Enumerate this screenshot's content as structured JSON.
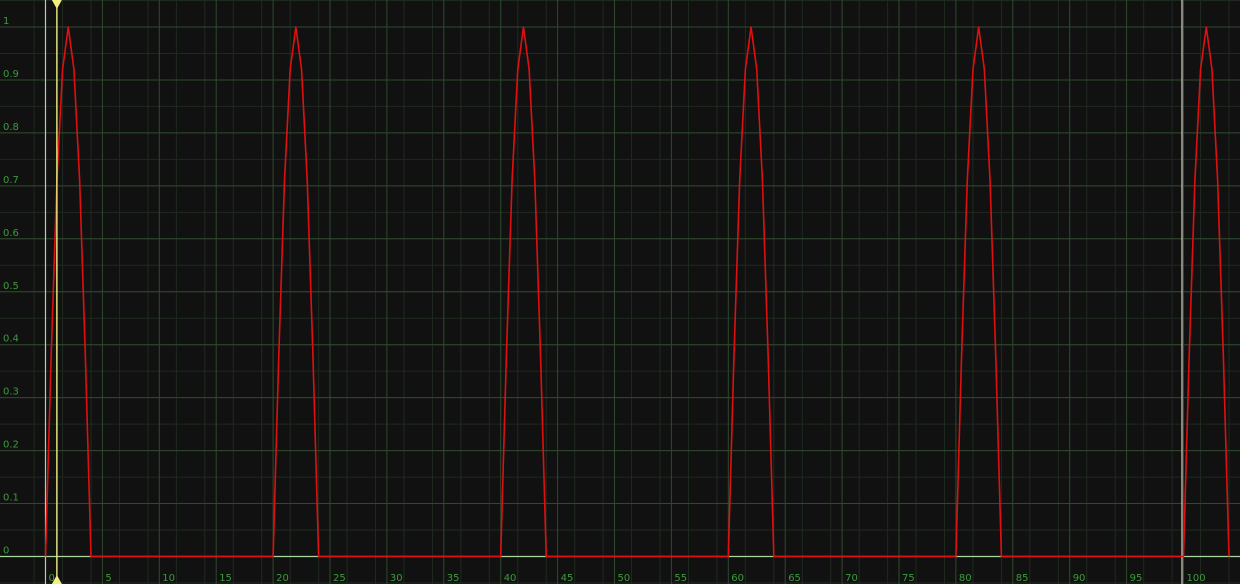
{
  "colors": {
    "background": "#111111",
    "grid_minor": "#1f2a1f",
    "grid_major": "#2e4a2e",
    "axis": "#a8d8a0",
    "tick_label": "#3d9a3d",
    "curve": "#e01010",
    "playhead": "#f0f080",
    "range_end": "#d8d8c8"
  },
  "playhead": {
    "frame": 1
  },
  "range_end": {
    "frame": 100
  },
  "chart_data": {
    "type": "line",
    "title": "",
    "xlabel": "",
    "ylabel": "",
    "xlim": [
      -1,
      104
    ],
    "ylim": [
      0,
      1.05
    ],
    "grid": true,
    "x_ticks": [
      0,
      5,
      10,
      15,
      20,
      25,
      30,
      35,
      40,
      45,
      50,
      55,
      60,
      65,
      70,
      75,
      80,
      85,
      90,
      95,
      100
    ],
    "x_tick_labels": [
      "0",
      "5",
      "10",
      "15",
      "20",
      "25",
      "30",
      "35",
      "40",
      "45",
      "50",
      "55",
      "60",
      "65",
      "70",
      "75",
      "80",
      "85",
      "90",
      "95",
      "100"
    ],
    "y_ticks": [
      0,
      0.1,
      0.2,
      0.3,
      0.4,
      0.5,
      0.6,
      0.7,
      0.8,
      0.9,
      1
    ],
    "y_tick_labels": [
      "0",
      "0.1",
      "0.2",
      "0.3",
      "0.4",
      "0.5",
      "0.6",
      "0.7",
      "0.8",
      "0.9",
      "1"
    ],
    "series": [
      {
        "points": [
          [
            0,
            0
          ],
          [
            0.5,
            0.38
          ],
          [
            1,
            0.71
          ],
          [
            1.5,
            0.92
          ],
          [
            2,
            1
          ],
          [
            2.5,
            0.92
          ],
          [
            3,
            0.71
          ],
          [
            3.5,
            0.38
          ],
          [
            4,
            0
          ],
          [
            5,
            0
          ],
          [
            10,
            0
          ],
          [
            15,
            0
          ],
          [
            19.6,
            0
          ],
          [
            20,
            0
          ],
          [
            20.5,
            0.38
          ],
          [
            21,
            0.71
          ],
          [
            21.5,
            0.92
          ],
          [
            22,
            1
          ],
          [
            22.5,
            0.92
          ],
          [
            23,
            0.71
          ],
          [
            23.5,
            0.38
          ],
          [
            24,
            0
          ],
          [
            30,
            0
          ],
          [
            35,
            0
          ],
          [
            39.6,
            0
          ],
          [
            40,
            0
          ],
          [
            40.5,
            0.38
          ],
          [
            41,
            0.71
          ],
          [
            41.5,
            0.92
          ],
          [
            42,
            1
          ],
          [
            42.5,
            0.92
          ],
          [
            43,
            0.71
          ],
          [
            43.5,
            0.38
          ],
          [
            44,
            0
          ],
          [
            50,
            0
          ],
          [
            55,
            0
          ],
          [
            59.6,
            0
          ],
          [
            60,
            0
          ],
          [
            60.5,
            0.38
          ],
          [
            61,
            0.71
          ],
          [
            61.5,
            0.92
          ],
          [
            62,
            1
          ],
          [
            62.5,
            0.92
          ],
          [
            63,
            0.71
          ],
          [
            63.5,
            0.38
          ],
          [
            64,
            0
          ],
          [
            70,
            0
          ],
          [
            75,
            0
          ],
          [
            79.6,
            0
          ],
          [
            80,
            0
          ],
          [
            80.5,
            0.38
          ],
          [
            81,
            0.71
          ],
          [
            81.5,
            0.92
          ],
          [
            82,
            1
          ],
          [
            82.5,
            0.92
          ],
          [
            83,
            0.71
          ],
          [
            83.5,
            0.38
          ],
          [
            84,
            0
          ],
          [
            90,
            0
          ],
          [
            95,
            0
          ],
          [
            99.6,
            0
          ],
          [
            100,
            0
          ],
          [
            100.5,
            0.38
          ],
          [
            101,
            0.71
          ],
          [
            101.5,
            0.92
          ],
          [
            102,
            1
          ],
          [
            102.5,
            0.92
          ],
          [
            103,
            0.71
          ],
          [
            103.5,
            0.38
          ],
          [
            104,
            0
          ]
        ]
      }
    ]
  }
}
